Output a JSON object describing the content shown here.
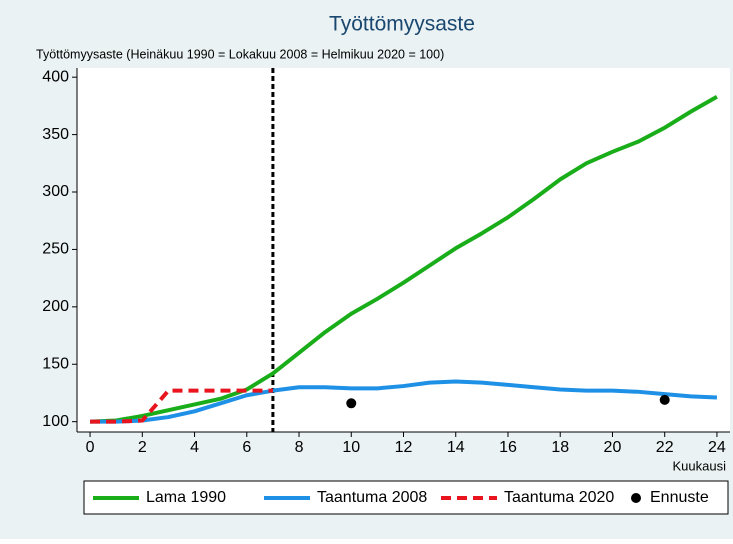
{
  "chart_data": {
    "type": "line",
    "title": "Työttömyysaste",
    "ylabel": "Työttömyysaste (Heinäkuu 1990 = Lokakuu 2008 = Helmikuu 2020 = 100)",
    "xlabel": "Kuukausi",
    "x": [
      0,
      1,
      2,
      3,
      4,
      5,
      6,
      7,
      8,
      9,
      10,
      11,
      12,
      13,
      14,
      15,
      16,
      17,
      18,
      19,
      20,
      21,
      22,
      23,
      24
    ],
    "series": [
      {
        "name": "Lama 1990",
        "color": "#1aad1a",
        "style": "solid",
        "values": [
          100,
          101,
          105,
          110,
          115,
          120,
          128,
          142,
          160,
          178,
          194,
          207,
          221,
          236,
          251,
          264,
          278,
          294,
          311,
          325,
          335,
          344,
          356,
          370,
          383
        ]
      },
      {
        "name": "Taantuma 2008",
        "color": "#1e90e6",
        "style": "solid",
        "values": [
          100,
          100,
          101,
          104,
          109,
          116,
          123,
          127,
          130,
          130,
          129,
          129,
          131,
          134,
          135,
          134,
          132,
          130,
          128,
          127,
          127,
          126,
          124,
          122,
          121
        ]
      },
      {
        "name": "Taantuma 2020",
        "color": "#e8141e",
        "style": "dashed",
        "values": [
          100,
          100,
          101,
          127,
          127,
          127,
          127,
          127,
          null,
          null,
          null,
          null,
          null,
          null,
          null,
          null,
          null,
          null,
          null,
          null,
          null,
          null,
          null,
          null,
          null
        ]
      },
      {
        "name": "Ennuste",
        "color": "#000000",
        "style": "points",
        "values": [
          null,
          null,
          null,
          null,
          null,
          null,
          null,
          null,
          null,
          null,
          116,
          null,
          null,
          null,
          null,
          null,
          null,
          null,
          null,
          null,
          null,
          null,
          119,
          null,
          null
        ]
      }
    ],
    "vline": 7,
    "xlim": [
      -0.5,
      24.5
    ],
    "ylim": [
      91,
      408
    ],
    "xticks": [
      0,
      2,
      4,
      6,
      8,
      10,
      12,
      14,
      16,
      18,
      20,
      22,
      24
    ],
    "yticks": [
      100,
      150,
      200,
      250,
      300,
      350,
      400
    ],
    "legend": "bottom"
  }
}
